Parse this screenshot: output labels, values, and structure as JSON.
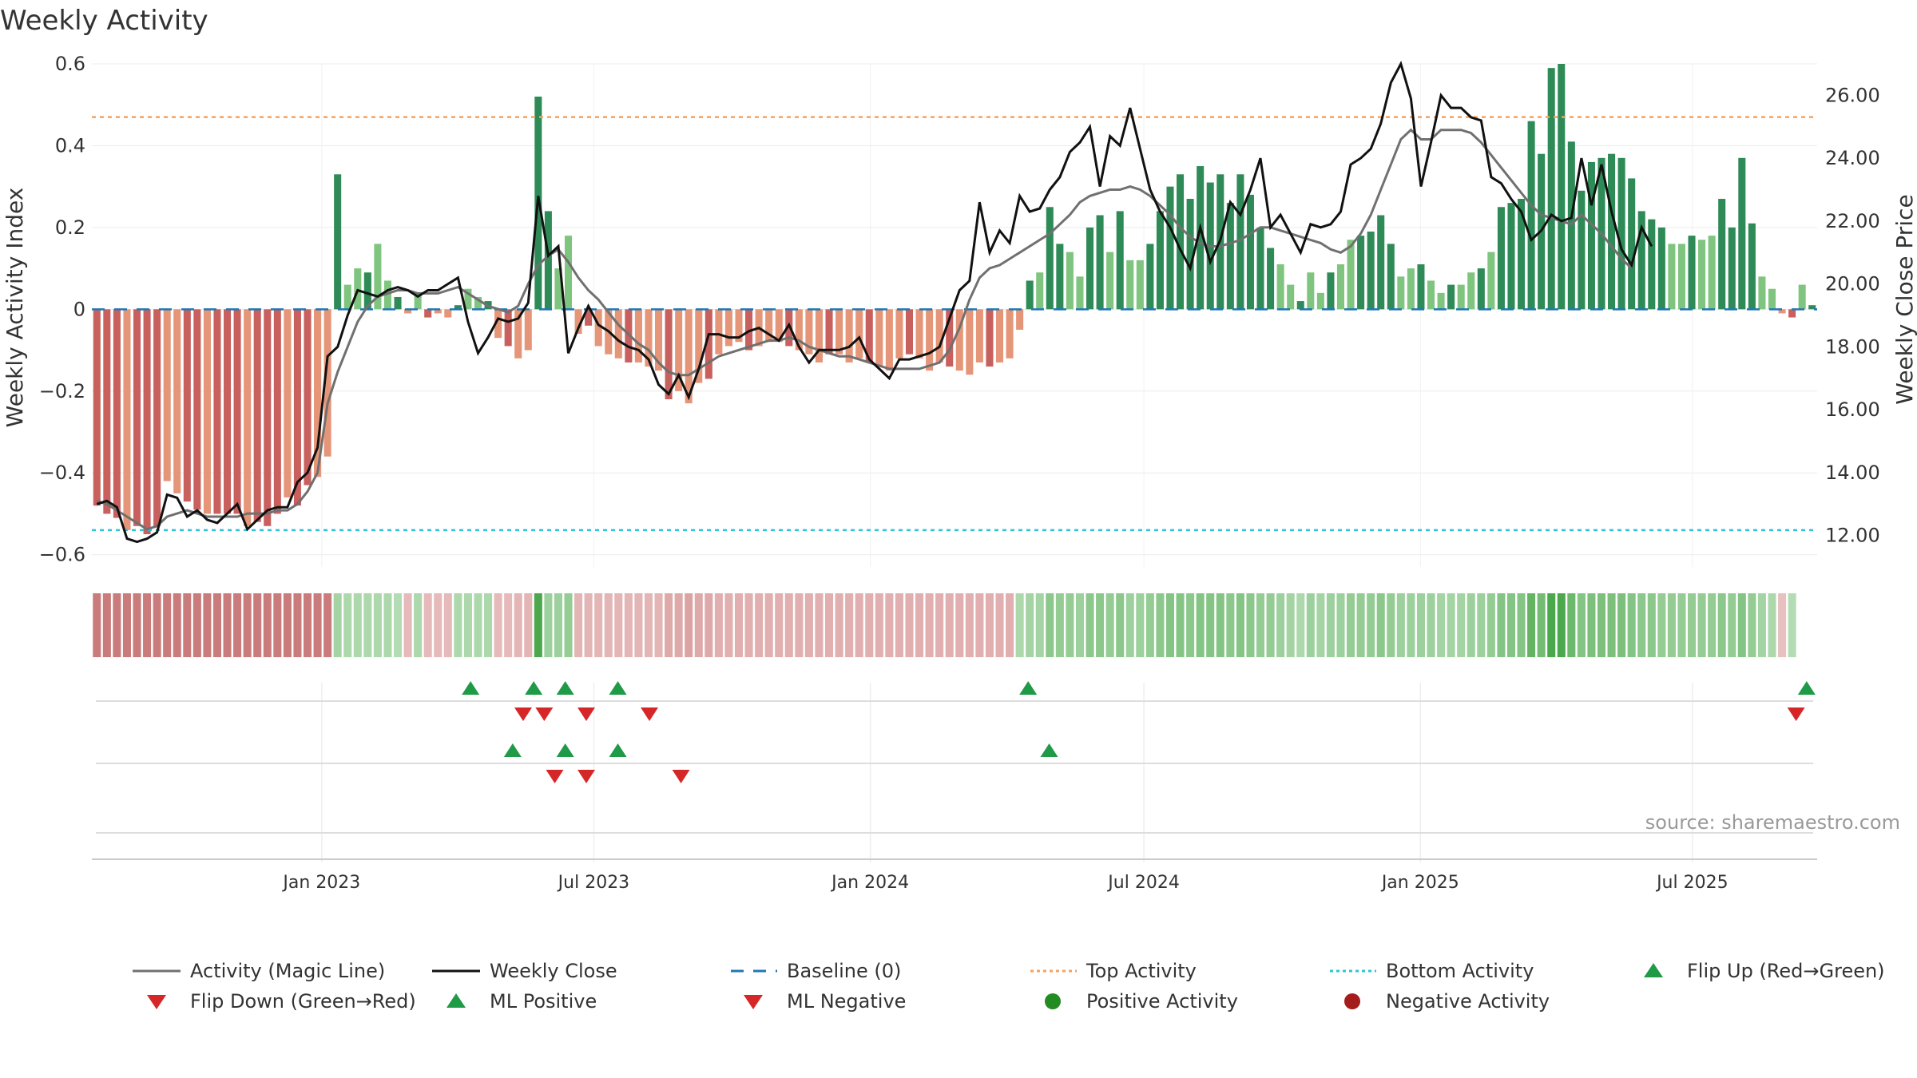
{
  "title": "Weekly Activity",
  "source_note": "source: sharemaestro.com",
  "legend": [
    {
      "key": "magic",
      "label": "Activity (Magic Line)",
      "icon": "gray-line-icon"
    },
    {
      "key": "close",
      "label": "Weekly Close",
      "icon": "black-line-icon"
    },
    {
      "key": "baseline",
      "label": "Baseline (0)",
      "icon": "blue-dashed-line-icon"
    },
    {
      "key": "top",
      "label": "Top Activity",
      "icon": "orange-dotted-line-icon"
    },
    {
      "key": "bottom",
      "label": "Bottom Activity",
      "icon": "cyan-dotted-line-icon"
    },
    {
      "key": "flipup",
      "label": "Flip Up (Red→Green)",
      "icon": "green-triangle-up-icon"
    },
    {
      "key": "flipdown",
      "label": "Flip Down (Green→Red)",
      "icon": "red-triangle-down-icon"
    },
    {
      "key": "mlpos",
      "label": "ML Positive",
      "icon": "green-triangle-up-icon"
    },
    {
      "key": "mlneg",
      "label": "ML Negative",
      "icon": "red-triangle-down-icon"
    },
    {
      "key": "pos",
      "label": "Positive Activity",
      "icon": "green-dot-icon"
    },
    {
      "key": "neg",
      "label": "Negative Activity",
      "icon": "dark-red-dot-icon"
    }
  ],
  "colors": {
    "pos_dark": "#2e8b57",
    "pos_light": "#7fc47f",
    "neg_dark": "#c8605e",
    "neg_light": "#e59578",
    "magic": "#707070",
    "close": "#111111",
    "baseline": "#1f77b4",
    "top": "#f4a261",
    "bottom": "#2ec4d6",
    "marker_up": "#1f9a47",
    "marker_down": "#d62728",
    "legend_pos_dot": "#228b22",
    "legend_neg_dot": "#a51c1c"
  },
  "chart_data": {
    "type": "bar",
    "x_axis": {
      "type": "date",
      "start": "2022-08-01",
      "end": "2025-09-22",
      "ticks": [
        "Jan 2023",
        "Jul 2023",
        "Jan 2024",
        "Jul 2024",
        "Jan 2025",
        "Jul 2025"
      ]
    },
    "left_axis": {
      "label": "Weekly Activity Index",
      "ylim": [
        -0.63,
        0.6
      ],
      "ticks": [
        "−0.6",
        "−0.4",
        "−0.2",
        "0",
        "0.2",
        "0.4",
        "0.6"
      ]
    },
    "right_axis": {
      "label": "Weekly Close Price",
      "ylim": [
        11.0,
        27.0
      ],
      "ticks": [
        "12.00",
        "14.00",
        "16.00",
        "18.00",
        "20.00",
        "22.00",
        "24.00",
        "26.00"
      ]
    },
    "top_activity": 0.47,
    "bottom_activity": -0.54,
    "baseline": 0,
    "activity": [
      -0.48,
      -0.5,
      -0.51,
      -0.54,
      -0.53,
      -0.55,
      -0.53,
      -0.42,
      -0.45,
      -0.47,
      -0.49,
      -0.5,
      -0.5,
      -0.5,
      -0.5,
      -0.53,
      -0.52,
      -0.53,
      -0.5,
      -0.46,
      -0.48,
      -0.43,
      -0.41,
      -0.36,
      0.33,
      0.06,
      0.1,
      0.09,
      0.16,
      0.07,
      0.03,
      -0.01,
      0.04,
      -0.02,
      -0.01,
      -0.02,
      0.01,
      0.05,
      0.03,
      0.02,
      -0.07,
      -0.09,
      -0.12,
      -0.1,
      0.52,
      0.24,
      0.1,
      0.18,
      -0.06,
      -0.04,
      -0.09,
      -0.11,
      -0.12,
      -0.13,
      -0.13,
      -0.14,
      -0.15,
      -0.22,
      -0.2,
      -0.23,
      -0.18,
      -0.17,
      -0.11,
      -0.09,
      -0.08,
      -0.1,
      -0.09,
      -0.08,
      -0.08,
      -0.09,
      -0.1,
      -0.11,
      -0.13,
      -0.11,
      -0.11,
      -0.13,
      -0.12,
      -0.13,
      -0.14,
      -0.15,
      -0.12,
      -0.11,
      -0.12,
      -0.15,
      -0.13,
      -0.14,
      -0.15,
      -0.16,
      -0.13,
      -0.14,
      -0.13,
      -0.12,
      -0.05,
      0.07,
      0.09,
      0.25,
      0.16,
      0.14,
      0.08,
      0.2,
      0.23,
      0.14,
      0.24,
      0.12,
      0.12,
      0.16,
      0.24,
      0.3,
      0.33,
      0.27,
      0.35,
      0.31,
      0.33,
      0.26,
      0.33,
      0.28,
      0.2,
      0.15,
      0.11,
      0.06,
      0.02,
      0.09,
      0.04,
      0.09,
      0.11,
      0.17,
      0.18,
      0.19,
      0.23,
      0.16,
      0.08,
      0.1,
      0.11,
      0.07,
      0.04,
      0.06,
      0.06,
      0.09,
      0.1,
      0.14,
      0.25,
      0.26,
      0.27,
      0.46,
      0.38,
      0.59,
      0.6,
      0.41,
      0.29,
      0.36,
      0.37,
      0.38,
      0.37,
      0.32,
      0.24,
      0.22,
      0.2,
      0.16,
      0.16,
      0.18,
      0.17,
      0.18,
      0.27,
      0.2,
      0.37,
      0.21,
      0.08,
      0.05,
      -0.01,
      -0.02,
      0.06,
      0.01
    ],
    "weekly_close": [
      13.0,
      13.1,
      12.9,
      11.9,
      11.8,
      11.9,
      12.1,
      13.3,
      13.2,
      12.6,
      12.8,
      12.5,
      12.4,
      12.7,
      13.0,
      12.2,
      12.5,
      12.8,
      12.9,
      12.9,
      13.7,
      14.0,
      14.8,
      17.7,
      18.0,
      19.0,
      19.8,
      19.7,
      19.6,
      19.8,
      19.9,
      19.8,
      19.6,
      19.8,
      19.8,
      20.0,
      20.2,
      18.8,
      17.8,
      18.3,
      18.9,
      18.8,
      18.9,
      19.4,
      22.8,
      20.9,
      21.2,
      17.8,
      18.6,
      19.3,
      18.7,
      18.5,
      18.2,
      18.0,
      17.9,
      17.6,
      16.8,
      16.5,
      17.1,
      16.4,
      17.3,
      18.4,
      18.4,
      18.3,
      18.3,
      18.5,
      18.6,
      18.4,
      18.2,
      18.7,
      18.0,
      17.5,
      17.9,
      17.9,
      17.9,
      18.0,
      18.3,
      17.6,
      17.3,
      17.0,
      17.6,
      17.6,
      17.7,
      17.8,
      18.0,
      18.9,
      19.8,
      20.1,
      22.6,
      21.0,
      21.7,
      21.3,
      22.8,
      22.3,
      22.4,
      23.0,
      23.4,
      24.2,
      24.5,
      25.0,
      23.1,
      24.7,
      24.4,
      25.6,
      24.3,
      23.0,
      22.3,
      21.8,
      21.1,
      20.5,
      21.8,
      20.7,
      21.4,
      22.6,
      22.2,
      23.0,
      24.0,
      21.8,
      22.2,
      21.6,
      21.0,
      21.9,
      21.8,
      21.9,
      22.3,
      23.8,
      24.0,
      24.3,
      25.1,
      26.4,
      27.0,
      25.9,
      23.1,
      24.5,
      26.0,
      25.6,
      25.6,
      25.3,
      25.2,
      23.4,
      23.2,
      22.7,
      22.3,
      21.4,
      21.7,
      22.2,
      22.0,
      22.1,
      24.0,
      22.5,
      23.8,
      22.3,
      21.1,
      20.6,
      21.8,
      21.2
    ],
    "magic_line": [
      13.1,
      13.0,
      12.8,
      12.6,
      12.4,
      12.2,
      12.3,
      12.6,
      12.7,
      12.8,
      12.7,
      12.6,
      12.6,
      12.6,
      12.6,
      12.7,
      12.7,
      12.7,
      12.8,
      12.8,
      13.0,
      13.4,
      14.0,
      16.2,
      17.2,
      18.0,
      18.8,
      19.3,
      19.6,
      19.7,
      19.8,
      19.8,
      19.7,
      19.7,
      19.7,
      19.8,
      19.9,
      19.7,
      19.5,
      19.3,
      19.2,
      19.1,
      19.3,
      20.0,
      20.6,
      20.9,
      21.1,
      20.7,
      20.2,
      19.8,
      19.5,
      19.1,
      18.7,
      18.4,
      18.1,
      17.9,
      17.5,
      17.2,
      17.1,
      17.1,
      17.3,
      17.5,
      17.7,
      17.8,
      17.9,
      18.0,
      18.1,
      18.2,
      18.2,
      18.3,
      18.2,
      18.0,
      17.9,
      17.8,
      17.7,
      17.7,
      17.6,
      17.5,
      17.4,
      17.3,
      17.3,
      17.3,
      17.3,
      17.4,
      17.5,
      17.9,
      18.6,
      19.5,
      20.2,
      20.5,
      20.6,
      20.8,
      21.0,
      21.2,
      21.4,
      21.6,
      21.9,
      22.2,
      22.6,
      22.8,
      22.9,
      23.0,
      23.0,
      23.1,
      23.0,
      22.8,
      22.5,
      22.2,
      21.8,
      21.5,
      21.3,
      21.2,
      21.2,
      21.3,
      21.4,
      21.6,
      21.8,
      21.8,
      21.7,
      21.6,
      21.5,
      21.4,
      21.3,
      21.1,
      21.0,
      21.2,
      21.6,
      22.2,
      23.0,
      23.8,
      24.6,
      24.9,
      24.6,
      24.6,
      24.9,
      24.9,
      24.9,
      24.8,
      24.5,
      24.1,
      23.7,
      23.3,
      22.9,
      22.5,
      22.2,
      22.1,
      22.0,
      21.9,
      22.2,
      21.9,
      21.6,
      21.2,
      20.8,
      20.5
    ],
    "heat_strip": [
      -0.8,
      -0.8,
      -0.8,
      -0.8,
      -0.8,
      -0.8,
      -0.8,
      -0.8,
      -0.8,
      -0.8,
      -0.8,
      -0.8,
      -0.8,
      -0.8,
      -0.8,
      -0.8,
      -0.8,
      -0.8,
      -0.8,
      -0.8,
      -0.8,
      -0.8,
      -0.8,
      -0.8,
      0.35,
      0.3,
      0.3,
      0.3,
      0.3,
      0.3,
      0.25,
      -0.25,
      0.3,
      -0.25,
      -0.25,
      -0.25,
      0.3,
      0.3,
      0.3,
      0.3,
      -0.25,
      -0.25,
      -0.3,
      -0.3,
      0.9,
      0.4,
      0.4,
      0.45,
      -0.3,
      -0.3,
      -0.3,
      -0.3,
      -0.3,
      -0.3,
      -0.3,
      -0.3,
      -0.3,
      -0.4,
      -0.4,
      -0.45,
      -0.4,
      -0.4,
      -0.35,
      -0.35,
      -0.35,
      -0.35,
      -0.35,
      -0.35,
      -0.35,
      -0.35,
      -0.35,
      -0.35,
      -0.35,
      -0.35,
      -0.35,
      -0.35,
      -0.35,
      -0.35,
      -0.35,
      -0.35,
      -0.35,
      -0.35,
      -0.35,
      -0.35,
      -0.35,
      -0.35,
      -0.35,
      -0.35,
      -0.35,
      -0.35,
      -0.35,
      -0.35,
      0.3,
      0.35,
      0.35,
      0.5,
      0.45,
      0.45,
      0.4,
      0.5,
      0.5,
      0.45,
      0.5,
      0.4,
      0.4,
      0.45,
      0.5,
      0.55,
      0.55,
      0.5,
      0.55,
      0.55,
      0.55,
      0.5,
      0.55,
      0.5,
      0.45,
      0.45,
      0.4,
      0.35,
      0.3,
      0.4,
      0.35,
      0.4,
      0.4,
      0.45,
      0.45,
      0.45,
      0.5,
      0.45,
      0.4,
      0.4,
      0.4,
      0.4,
      0.35,
      0.35,
      0.35,
      0.4,
      0.4,
      0.45,
      0.55,
      0.55,
      0.55,
      0.75,
      0.65,
      0.9,
      0.9,
      0.7,
      0.55,
      0.6,
      0.6,
      0.6,
      0.6,
      0.55,
      0.5,
      0.5,
      0.45,
      0.45,
      0.45,
      0.45,
      0.45,
      0.45,
      0.5,
      0.45,
      0.55,
      0.45,
      0.35,
      0.3,
      -0.2,
      0.25
    ],
    "markers": {
      "flip_up": [
        "2023-04-10",
        "2023-05-22",
        "2023-06-12",
        "2023-07-17",
        "2024-04-15",
        "2025-09-15"
      ],
      "flip_down": [
        "2023-05-15",
        "2023-05-29",
        "2023-06-26",
        "2023-08-07",
        "2025-09-08"
      ],
      "ml_positive": [
        "2023-05-08",
        "2023-06-12",
        "2023-07-17",
        "2024-04-29"
      ],
      "ml_negative": [
        "2023-06-05",
        "2023-06-26",
        "2023-08-28"
      ]
    }
  }
}
